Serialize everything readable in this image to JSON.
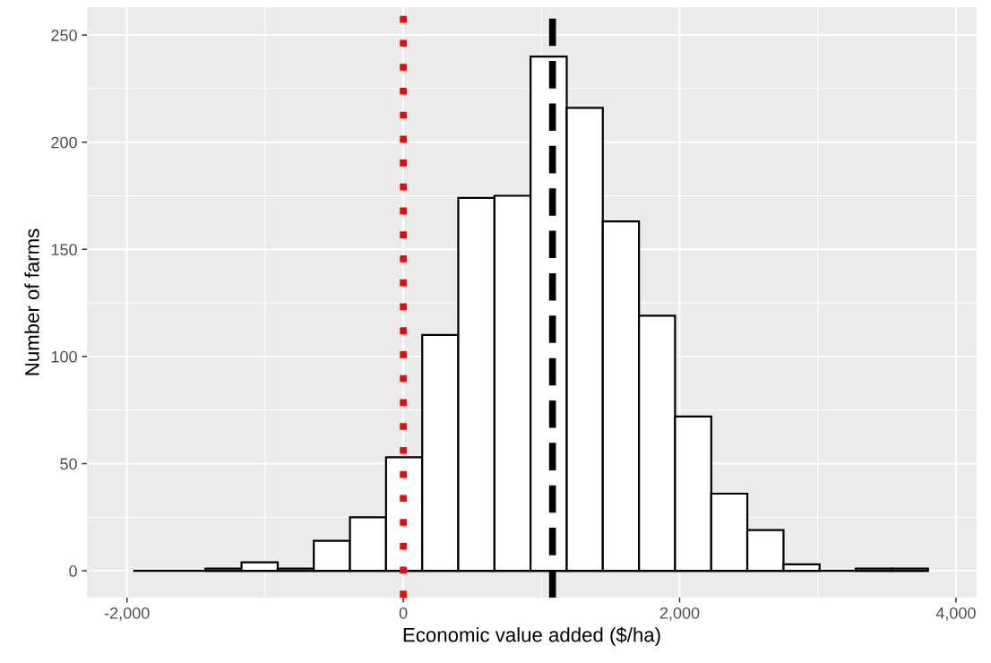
{
  "chart_data": {
    "type": "histogram",
    "xlabel": "Economic value added ($/ha)",
    "ylabel": "Number of farms",
    "bins": [
      -1955,
      -1694,
      -1432,
      -1171,
      -909,
      -648,
      -386,
      -125,
      137,
      398,
      660,
      921,
      1183,
      1444,
      1706,
      1967,
      2229,
      2490,
      2752,
      3013,
      3275,
      3536,
      3798
    ],
    "values": [
      0,
      0,
      1,
      4,
      1,
      14,
      25,
      53,
      110,
      174,
      175,
      240,
      216,
      163,
      119,
      72,
      36,
      19,
      3,
      0,
      1,
      1
    ],
    "color": "#ffffff",
    "xlim": [
      -2290,
      4150
    ],
    "ylim": [
      -12.5,
      263
    ],
    "xticks": [
      {
        "value": -2000,
        "label": "-2,000"
      },
      {
        "value": -1000,
        "label": null
      },
      0,
      {
        "value": 1000,
        "label": null
      },
      {
        "value": 2000,
        "label": "2,000"
      },
      {
        "value": 3000,
        "label": null
      },
      {
        "value": 4000,
        "label": "4,000"
      }
    ],
    "yticks": [
      0,
      {
        "value": 25,
        "label": null
      },
      50,
      {
        "value": 75,
        "label": null
      },
      100,
      {
        "value": 125,
        "label": null
      },
      150,
      {
        "value": 175,
        "label": null
      },
      200,
      {
        "value": 225,
        "label": null
      },
      250
    ],
    "grid": true,
    "ref_lines": [
      {
        "axis": "x",
        "value": 0,
        "label": null,
        "color": "#ff0000",
        "line_style": "dotted"
      },
      {
        "axis": "x",
        "value": 1080,
        "label": null,
        "color": "#000000",
        "line_style": "dashed"
      }
    ]
  }
}
